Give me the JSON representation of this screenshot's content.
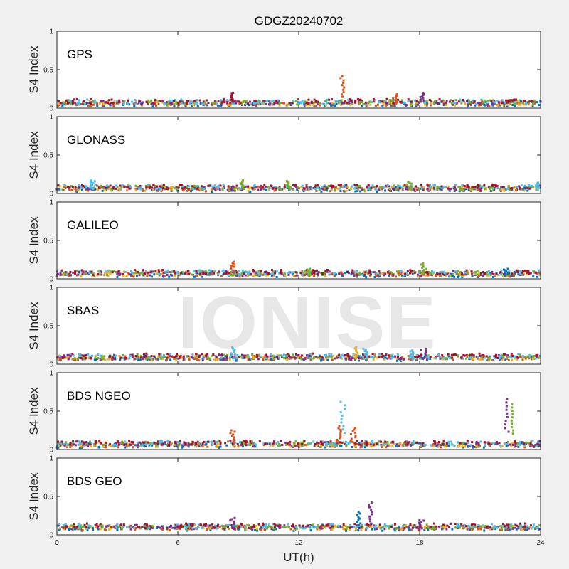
{
  "chart_data": {
    "type": "scatter",
    "title": "GDGZ20240702",
    "xlabel": "UT(h)",
    "ylabel": "S4 Index",
    "xlim": [
      0,
      24
    ],
    "ylim": [
      0,
      1
    ],
    "xticks": [
      "0",
      "6",
      "12",
      "18",
      "24"
    ],
    "yticks": [
      "0",
      "0.5",
      "1"
    ],
    "grid": false,
    "series_colors": [
      "#0072BD",
      "#D95319",
      "#EDB120",
      "#7E2F8E",
      "#77AC30",
      "#4DBEEE",
      "#A2142F"
    ],
    "panels": [
      {
        "label": "GPS",
        "baseline": [
          {
            "start": 0,
            "end": 24,
            "level": 0.07
          }
        ],
        "events": [
          {
            "x": 14.2,
            "y_max": 0.42,
            "color": "#D95319"
          },
          {
            "x": 8.7,
            "y_max": 0.2,
            "color": "#A2142F"
          },
          {
            "x": 16.8,
            "y_max": 0.18,
            "color": "#D95319"
          },
          {
            "x": 18.1,
            "y_max": 0.2,
            "color": "#7E2F8E"
          }
        ]
      },
      {
        "label": "GLONASS",
        "baseline": [
          {
            "start": 0,
            "end": 24,
            "level": 0.07
          }
        ],
        "events": [
          {
            "x": 1.8,
            "y_max": 0.17,
            "color": "#4DBEEE"
          },
          {
            "x": 9.2,
            "y_max": 0.17,
            "color": "#77AC30"
          },
          {
            "x": 11.5,
            "y_max": 0.16,
            "color": "#77AC30"
          },
          {
            "x": 17.5,
            "y_max": 0.15,
            "color": "#77AC30"
          },
          {
            "x": 23.8,
            "y_max": 0.14,
            "color": "#4DBEEE"
          }
        ]
      },
      {
        "label": "GALILEO",
        "baseline": [
          {
            "start": 0,
            "end": 24,
            "level": 0.07
          }
        ],
        "events": [
          {
            "x": 8.7,
            "y_max": 0.22,
            "color": "#D95319"
          },
          {
            "x": 12.5,
            "y_max": 0.13,
            "color": "#77AC30"
          },
          {
            "x": 18.2,
            "y_max": 0.2,
            "color": "#77AC30"
          },
          {
            "x": 22.3,
            "y_max": 0.13,
            "color": "#0072BD"
          }
        ]
      },
      {
        "label": "SBAS",
        "baseline": [
          {
            "start": 0,
            "end": 24,
            "level": 0.09
          }
        ],
        "events": [
          {
            "x": 8.7,
            "y_max": 0.22,
            "color": "#4DBEEE"
          },
          {
            "x": 14.8,
            "y_max": 0.22,
            "color": "#EDB120"
          },
          {
            "x": 15.3,
            "y_max": 0.2,
            "color": "#4DBEEE"
          },
          {
            "x": 17.6,
            "y_max": 0.18,
            "color": "#4DBEEE"
          },
          {
            "x": 18.2,
            "y_max": 0.2,
            "color": "#7E2F8E"
          }
        ]
      },
      {
        "label": "BDS NGEO",
        "baseline": [
          {
            "start": 0,
            "end": 24,
            "level": 0.07
          }
        ],
        "events": [
          {
            "x": 8.7,
            "y_max": 0.25,
            "color": "#D95319"
          },
          {
            "x": 14.0,
            "y_max": 0.3,
            "color": "#D95319"
          },
          {
            "x": 14.2,
            "y_max": 0.62,
            "color": "#4DBEEE"
          },
          {
            "x": 14.7,
            "y_max": 0.28,
            "color": "#D95319"
          },
          {
            "x": 22.3,
            "y_max": 0.66,
            "color": "#7E2F8E"
          },
          {
            "x": 22.6,
            "y_max": 0.59,
            "color": "#77AC30"
          }
        ]
      },
      {
        "label": "BDS GEO",
        "baseline": [
          {
            "start": 0,
            "end": 24,
            "level": 0.1
          }
        ],
        "events": [
          {
            "x": 8.7,
            "y_max": 0.22,
            "color": "#7E2F8E"
          },
          {
            "x": 15.0,
            "y_max": 0.3,
            "color": "#0072BD"
          },
          {
            "x": 15.6,
            "y_max": 0.42,
            "color": "#7E2F8E"
          },
          {
            "x": 18.1,
            "y_max": 0.2,
            "color": "#7E2F8E"
          }
        ]
      }
    ]
  },
  "watermark": "IONISE"
}
